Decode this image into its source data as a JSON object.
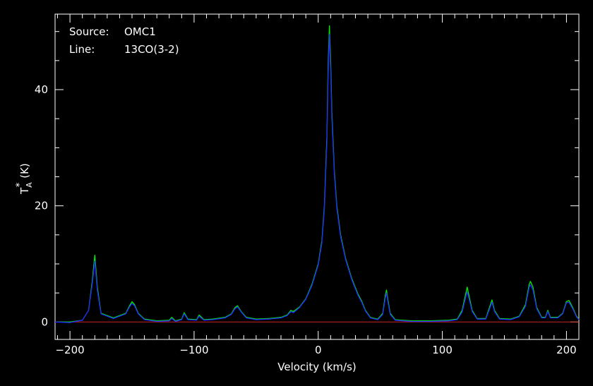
{
  "chart_data": {
    "type": "line",
    "annotations": {
      "source_label": "Source:",
      "source_value": "OMC1",
      "line_label": "Line:",
      "line_value": "13CO(3-2)"
    },
    "xlabel": "Velocity (km/s)",
    "ylabel": "T",
    "ylabel_sub": "A",
    "ylabel_sup": "*",
    "ylabel_unit": "(K)",
    "xlim": [
      -212,
      210
    ],
    "ylim": [
      -3,
      53
    ],
    "x_ticks": [
      {
        "value": -200,
        "label": "−200"
      },
      {
        "value": -100,
        "label": "−100"
      },
      {
        "value": 0,
        "label": "0"
      },
      {
        "value": 100,
        "label": "100"
      },
      {
        "value": 200,
        "label": "200"
      }
    ],
    "y_ticks": [
      {
        "value": 0,
        "label": "0"
      },
      {
        "value": 20,
        "label": "20"
      },
      {
        "value": 40,
        "label": "40"
      }
    ],
    "baseline": {
      "y": 0,
      "color": "#cc2222"
    },
    "series": [
      {
        "color": "#00ee00",
        "points": [
          [
            -212,
            0
          ],
          [
            -200,
            0
          ],
          [
            -190,
            0.3
          ],
          [
            -185,
            2
          ],
          [
            -182,
            7
          ],
          [
            -180,
            11.5
          ],
          [
            -178,
            6
          ],
          [
            -175,
            1.5
          ],
          [
            -165,
            0.7
          ],
          [
            -155,
            1.5
          ],
          [
            -152,
            2.8
          ],
          [
            -150,
            3.5
          ],
          [
            -148,
            3
          ],
          [
            -145,
            1.5
          ],
          [
            -140,
            0.5
          ],
          [
            -130,
            0.2
          ],
          [
            -120,
            0.3
          ],
          [
            -118,
            0.8
          ],
          [
            -115,
            0.2
          ],
          [
            -110,
            0.5
          ],
          [
            -108,
            1.6
          ],
          [
            -105,
            0.5
          ],
          [
            -98,
            0.4
          ],
          [
            -96,
            1.2
          ],
          [
            -92,
            0.4
          ],
          [
            -85,
            0.5
          ],
          [
            -75,
            0.8
          ],
          [
            -70,
            1.4
          ],
          [
            -67,
            2.5
          ],
          [
            -65,
            2.8
          ],
          [
            -62,
            1.8
          ],
          [
            -58,
            0.8
          ],
          [
            -50,
            0.5
          ],
          [
            -40,
            0.6
          ],
          [
            -30,
            0.8
          ],
          [
            -25,
            1.2
          ],
          [
            -22,
            2
          ],
          [
            -20,
            1.8
          ],
          [
            -15,
            2.6
          ],
          [
            -10,
            4
          ],
          [
            -5,
            6.5
          ],
          [
            0,
            10
          ],
          [
            3,
            14
          ],
          [
            5,
            20
          ],
          [
            7,
            32
          ],
          [
            8,
            44
          ],
          [
            9,
            51
          ],
          [
            10,
            45
          ],
          [
            11,
            36
          ],
          [
            13,
            26
          ],
          [
            15,
            20
          ],
          [
            18,
            15
          ],
          [
            22,
            11
          ],
          [
            27,
            7.5
          ],
          [
            32,
            4.8
          ],
          [
            35,
            3.6
          ],
          [
            38,
            2
          ],
          [
            42,
            0.8
          ],
          [
            48,
            0.5
          ],
          [
            52,
            1.5
          ],
          [
            54,
            4.5
          ],
          [
            55,
            5.5
          ],
          [
            56,
            4
          ],
          [
            58,
            1.5
          ],
          [
            62,
            0.4
          ],
          [
            75,
            0.2
          ],
          [
            90,
            0.2
          ],
          [
            105,
            0.3
          ],
          [
            112,
            0.5
          ],
          [
            116,
            2
          ],
          [
            119,
            5
          ],
          [
            120,
            6
          ],
          [
            121,
            5
          ],
          [
            124,
            2
          ],
          [
            128,
            0.6
          ],
          [
            135,
            0.6
          ],
          [
            138,
            2.5
          ],
          [
            140,
            3.8
          ],
          [
            142,
            2
          ],
          [
            146,
            0.6
          ],
          [
            155,
            0.5
          ],
          [
            162,
            1
          ],
          [
            167,
            3
          ],
          [
            170,
            6.5
          ],
          [
            171,
            7
          ],
          [
            173,
            6
          ],
          [
            176,
            2.5
          ],
          [
            180,
            0.8
          ],
          [
            183,
            0.8
          ],
          [
            185,
            2
          ],
          [
            187,
            0.8
          ],
          [
            193,
            0.8
          ],
          [
            197,
            1.5
          ],
          [
            200,
            3.5
          ],
          [
            202,
            3.7
          ],
          [
            205,
            2.5
          ],
          [
            208,
            1
          ],
          [
            210,
            0.5
          ]
        ]
      },
      {
        "color": "#2222ff",
        "points": [
          [
            -212,
            0
          ],
          [
            -200,
            -0.1
          ],
          [
            -190,
            0.3
          ],
          [
            -185,
            2
          ],
          [
            -182,
            6.5
          ],
          [
            -180,
            10.5
          ],
          [
            -178,
            5.5
          ],
          [
            -175,
            1.4
          ],
          [
            -165,
            0.6
          ],
          [
            -155,
            1.4
          ],
          [
            -152,
            2.6
          ],
          [
            -150,
            3.2
          ],
          [
            -148,
            2.8
          ],
          [
            -145,
            1.4
          ],
          [
            -140,
            0.4
          ],
          [
            -130,
            0.1
          ],
          [
            -120,
            0.2
          ],
          [
            -118,
            0.6
          ],
          [
            -115,
            0.1
          ],
          [
            -110,
            0.4
          ],
          [
            -108,
            1.4
          ],
          [
            -105,
            0.4
          ],
          [
            -98,
            0.3
          ],
          [
            -96,
            1
          ],
          [
            -92,
            0.3
          ],
          [
            -85,
            0.4
          ],
          [
            -75,
            0.7
          ],
          [
            -70,
            1.3
          ],
          [
            -67,
            2.3
          ],
          [
            -65,
            2.6
          ],
          [
            -62,
            1.7
          ],
          [
            -58,
            0.7
          ],
          [
            -50,
            0.4
          ],
          [
            -40,
            0.5
          ],
          [
            -30,
            0.7
          ],
          [
            -25,
            1.1
          ],
          [
            -22,
            1.8
          ],
          [
            -20,
            1.6
          ],
          [
            -15,
            2.5
          ],
          [
            -10,
            3.9
          ],
          [
            -5,
            6.3
          ],
          [
            0,
            9.8
          ],
          [
            3,
            13.6
          ],
          [
            5,
            19.5
          ],
          [
            7,
            31
          ],
          [
            8,
            42.5
          ],
          [
            9,
            49.5
          ],
          [
            10,
            43.5
          ],
          [
            11,
            35
          ],
          [
            13,
            25.5
          ],
          [
            15,
            19.6
          ],
          [
            18,
            14.7
          ],
          [
            22,
            10.8
          ],
          [
            27,
            7.3
          ],
          [
            32,
            4.6
          ],
          [
            35,
            3.4
          ],
          [
            38,
            1.9
          ],
          [
            42,
            0.7
          ],
          [
            48,
            0.4
          ],
          [
            52,
            1.3
          ],
          [
            54,
            4
          ],
          [
            55,
            5
          ],
          [
            56,
            3.6
          ],
          [
            58,
            1.3
          ],
          [
            62,
            0.3
          ],
          [
            75,
            0.1
          ],
          [
            90,
            0.1
          ],
          [
            105,
            0.2
          ],
          [
            112,
            0.4
          ],
          [
            116,
            1.7
          ],
          [
            119,
            4.4
          ],
          [
            120,
            5.2
          ],
          [
            121,
            4.4
          ],
          [
            124,
            1.8
          ],
          [
            128,
            0.5
          ],
          [
            135,
            0.5
          ],
          [
            138,
            2.2
          ],
          [
            140,
            3.4
          ],
          [
            142,
            1.8
          ],
          [
            146,
            0.5
          ],
          [
            155,
            0.4
          ],
          [
            162,
            0.9
          ],
          [
            167,
            2.7
          ],
          [
            170,
            6
          ],
          [
            171,
            6.4
          ],
          [
            173,
            5.5
          ],
          [
            176,
            2.3
          ],
          [
            180,
            0.7
          ],
          [
            183,
            0.7
          ],
          [
            185,
            1.8
          ],
          [
            187,
            0.7
          ],
          [
            193,
            0.7
          ],
          [
            197,
            1.4
          ],
          [
            200,
            3.3
          ],
          [
            202,
            3.4
          ],
          [
            205,
            2.3
          ],
          [
            208,
            0.9
          ],
          [
            210,
            0.4
          ]
        ]
      }
    ]
  }
}
